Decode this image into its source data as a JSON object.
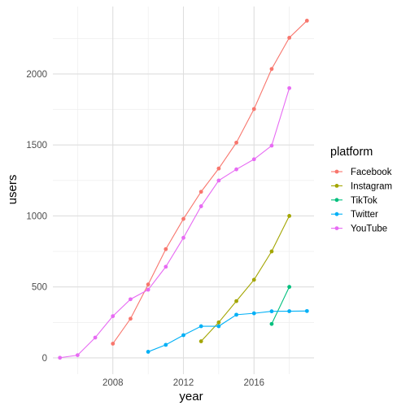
{
  "chart_data": {
    "type": "line",
    "xlabel": "year",
    "ylabel": "users",
    "xlim": [
      2004.6,
      2019.4
    ],
    "ylim": [
      -115,
      2475
    ],
    "x_ticks": [
      2008,
      2012,
      2016
    ],
    "x_tick_labels": [
      "2008",
      "2012",
      "2016"
    ],
    "y_ticks": [
      0,
      500,
      1000,
      1500,
      2000
    ],
    "y_tick_labels": [
      "0",
      "500",
      "1000",
      "1500",
      "2000"
    ],
    "grid": true,
    "markers": true,
    "legend": {
      "title": "platform",
      "placement": "right",
      "entries": [
        "Facebook",
        "Instagram",
        "TikTok",
        "Twitter",
        "YouTube"
      ]
    },
    "series": [
      {
        "name": "Facebook",
        "color": "#F8766D",
        "x": [
          2008,
          2009,
          2010,
          2011,
          2012,
          2013,
          2014,
          2015,
          2016,
          2017,
          2018,
          2019
        ],
        "values": [
          100,
          276,
          517,
          766,
          979,
          1170,
          1334,
          1516,
          1753,
          2035,
          2255,
          2375
        ]
      },
      {
        "name": "Instagram",
        "color": "#A3A500",
        "x": [
          2013,
          2014,
          2015,
          2016,
          2017,
          2018
        ],
        "values": [
          117,
          250,
          400,
          550,
          750,
          1000
        ]
      },
      {
        "name": "TikTok",
        "color": "#00BF7D",
        "x": [
          2017,
          2018
        ],
        "values": [
          239,
          500
        ]
      },
      {
        "name": "Twitter",
        "color": "#00B0F6",
        "x": [
          2010,
          2011,
          2012,
          2013,
          2014,
          2015,
          2016,
          2017,
          2018,
          2019
        ],
        "values": [
          43,
          92,
          160,
          223,
          223,
          304,
          314,
          328,
          329,
          330
        ]
      },
      {
        "name": "YouTube",
        "color": "#E76BF3",
        "x": [
          2005,
          2006,
          2007,
          2008,
          2009,
          2010,
          2011,
          2012,
          2013,
          2014,
          2015,
          2016,
          2017,
          2018
        ],
        "values": [
          1,
          19,
          143,
          294,
          413,
          480,
          642,
          846,
          1068,
          1249,
          1328,
          1399,
          1495,
          1900
        ]
      }
    ]
  }
}
